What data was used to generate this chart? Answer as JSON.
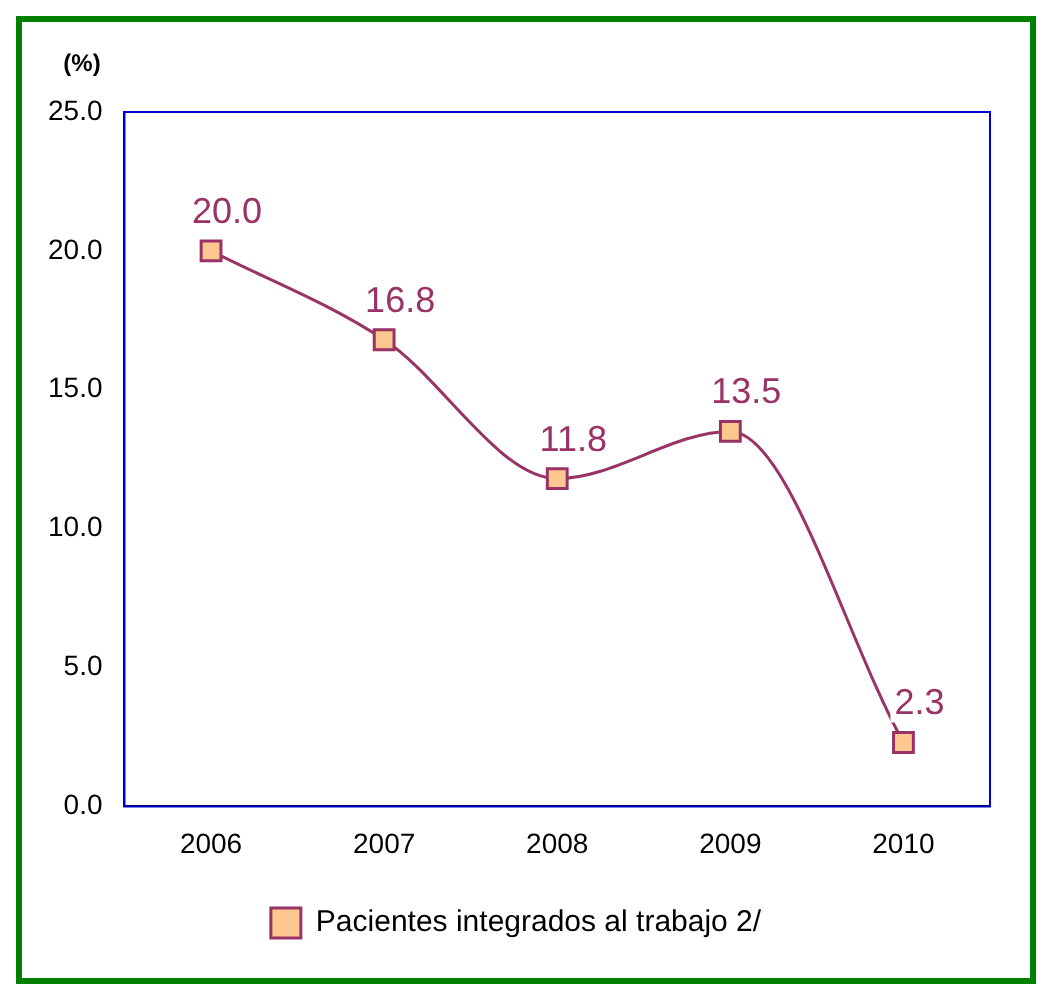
{
  "chart_data": {
    "type": "line",
    "ylabel": "(%)",
    "categories": [
      "2006",
      "2007",
      "2008",
      "2009",
      "2010"
    ],
    "series": [
      {
        "name": "Pacientes integrados al trabajo 2/",
        "color": "#993366",
        "values": [
          20.0,
          16.8,
          11.8,
          13.5,
          2.3
        ],
        "value_labels": [
          "20.0",
          "16.8",
          "11.8",
          "13.5",
          "2.3"
        ]
      }
    ],
    "ylim": [
      0,
      25
    ],
    "yticks": [
      {
        "value": 0,
        "label": "0.0"
      },
      {
        "value": 5,
        "label": "5.0"
      },
      {
        "value": 10,
        "label": "10.0"
      },
      {
        "value": 15,
        "label": "15.0"
      },
      {
        "value": 20,
        "label": "20.0"
      },
      {
        "value": 25,
        "label": "25.0"
      }
    ],
    "grid": false,
    "legend": "bottom",
    "marker": "square",
    "line_style": "solid"
  }
}
